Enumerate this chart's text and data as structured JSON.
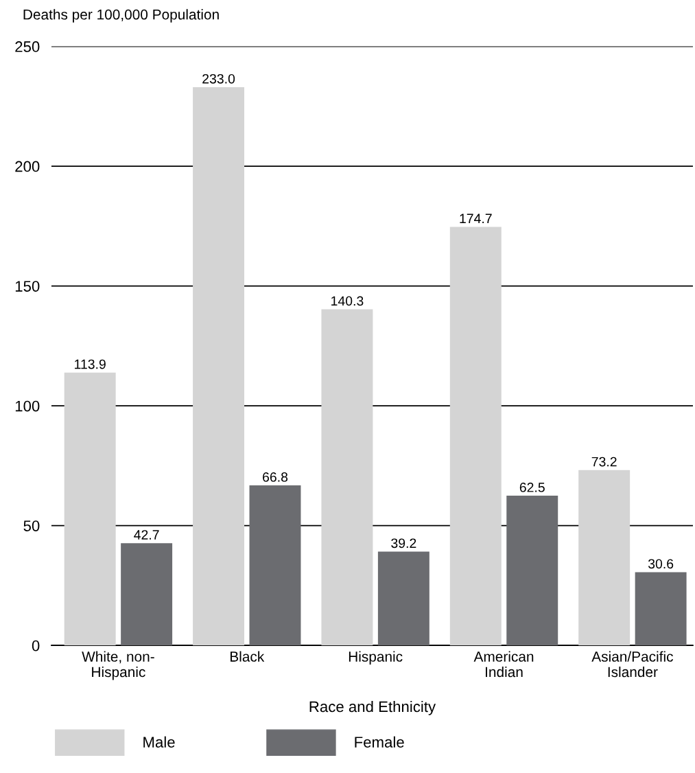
{
  "chart_data": {
    "type": "bar",
    "xlabel": "Race and Ethnicity",
    "ylabel": "Deaths per 100,000 Population",
    "categories": [
      "White, non-\nHispanic",
      "Black",
      "Hispanic",
      "American\nIndian",
      "Asian/Pacific\nIslander"
    ],
    "series": [
      {
        "name": "Male",
        "color": "#d4d4d4",
        "values": [
          113.9,
          233.0,
          140.3,
          174.7,
          73.2
        ],
        "value_labels": [
          "113.9",
          "233.0",
          "140.3",
          "174.7",
          "73.2"
        ]
      },
      {
        "name": "Female",
        "color": "#6b6c70",
        "values": [
          42.7,
          66.8,
          39.2,
          62.5,
          30.6
        ],
        "value_labels": [
          "42.7",
          "66.8",
          "39.2",
          "62.5",
          "30.6"
        ]
      }
    ],
    "ylim": [
      0,
      250
    ],
    "yticks": [
      0,
      50,
      100,
      150,
      200,
      250
    ],
    "grid": "y",
    "legend": "bottom"
  }
}
